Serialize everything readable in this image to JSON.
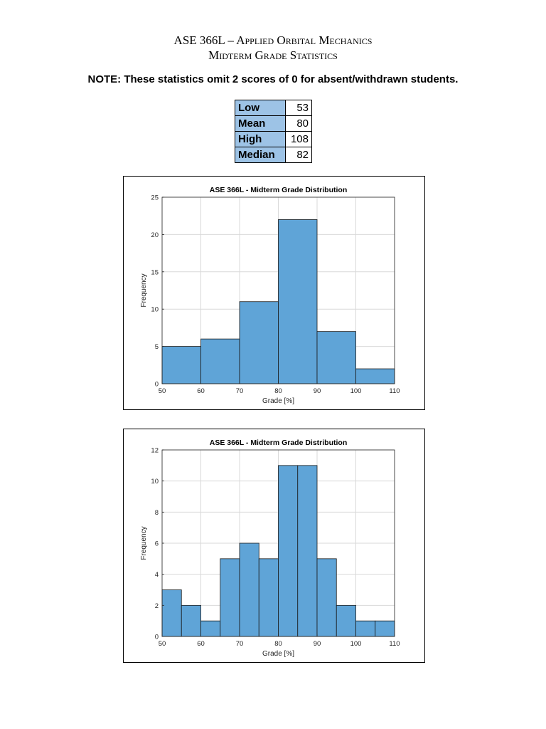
{
  "header": {
    "title_line1": "ASE 366L – Applied Orbital Mechanics",
    "title_line2": "Midterm Grade Statistics",
    "note": "NOTE: These statistics omit 2 scores of 0 for absent/withdrawn students."
  },
  "stats": [
    {
      "label": "Low",
      "value": "53"
    },
    {
      "label": "Mean",
      "value": "80"
    },
    {
      "label": "High",
      "value": "108"
    },
    {
      "label": "Median",
      "value": "82"
    }
  ],
  "colors": {
    "bar": "#5fa4d7",
    "table_header": "#9dc3e6",
    "grid": "#d9d9d9"
  },
  "chart_data": [
    {
      "type": "bar",
      "title": "ASE 366L - Midterm Grade Distribution",
      "xlabel": "Grade [%]",
      "ylabel": "Frequency",
      "xlim": [
        50,
        110
      ],
      "ylim": [
        0,
        25
      ],
      "xticks": [
        50,
        60,
        70,
        80,
        90,
        100,
        110
      ],
      "yticks": [
        0,
        5,
        10,
        15,
        20,
        25
      ],
      "bins": [
        {
          "from": 50,
          "to": 60,
          "value": 5
        },
        {
          "from": 60,
          "to": 70,
          "value": 6
        },
        {
          "from": 70,
          "to": 80,
          "value": 11
        },
        {
          "from": 80,
          "to": 90,
          "value": 22
        },
        {
          "from": 90,
          "to": 100,
          "value": 7
        },
        {
          "from": 100,
          "to": 110,
          "value": 2
        }
      ],
      "grid": true
    },
    {
      "type": "bar",
      "title": "ASE 366L - Midterm Grade Distribution",
      "xlabel": "Grade [%]",
      "ylabel": "Frequency",
      "xlim": [
        50,
        110
      ],
      "ylim": [
        0,
        12
      ],
      "xticks": [
        50,
        60,
        70,
        80,
        90,
        100,
        110
      ],
      "yticks": [
        0,
        2,
        4,
        6,
        8,
        10,
        12
      ],
      "bins": [
        {
          "from": 50,
          "to": 55,
          "value": 3
        },
        {
          "from": 55,
          "to": 60,
          "value": 2
        },
        {
          "from": 60,
          "to": 65,
          "value": 1
        },
        {
          "from": 65,
          "to": 70,
          "value": 5
        },
        {
          "from": 70,
          "to": 75,
          "value": 6
        },
        {
          "from": 75,
          "to": 80,
          "value": 5
        },
        {
          "from": 80,
          "to": 85,
          "value": 11
        },
        {
          "from": 85,
          "to": 90,
          "value": 11
        },
        {
          "from": 90,
          "to": 95,
          "value": 5
        },
        {
          "from": 95,
          "to": 100,
          "value": 2
        },
        {
          "from": 100,
          "to": 105,
          "value": 1
        },
        {
          "from": 105,
          "to": 110,
          "value": 1
        }
      ],
      "grid": true
    }
  ]
}
